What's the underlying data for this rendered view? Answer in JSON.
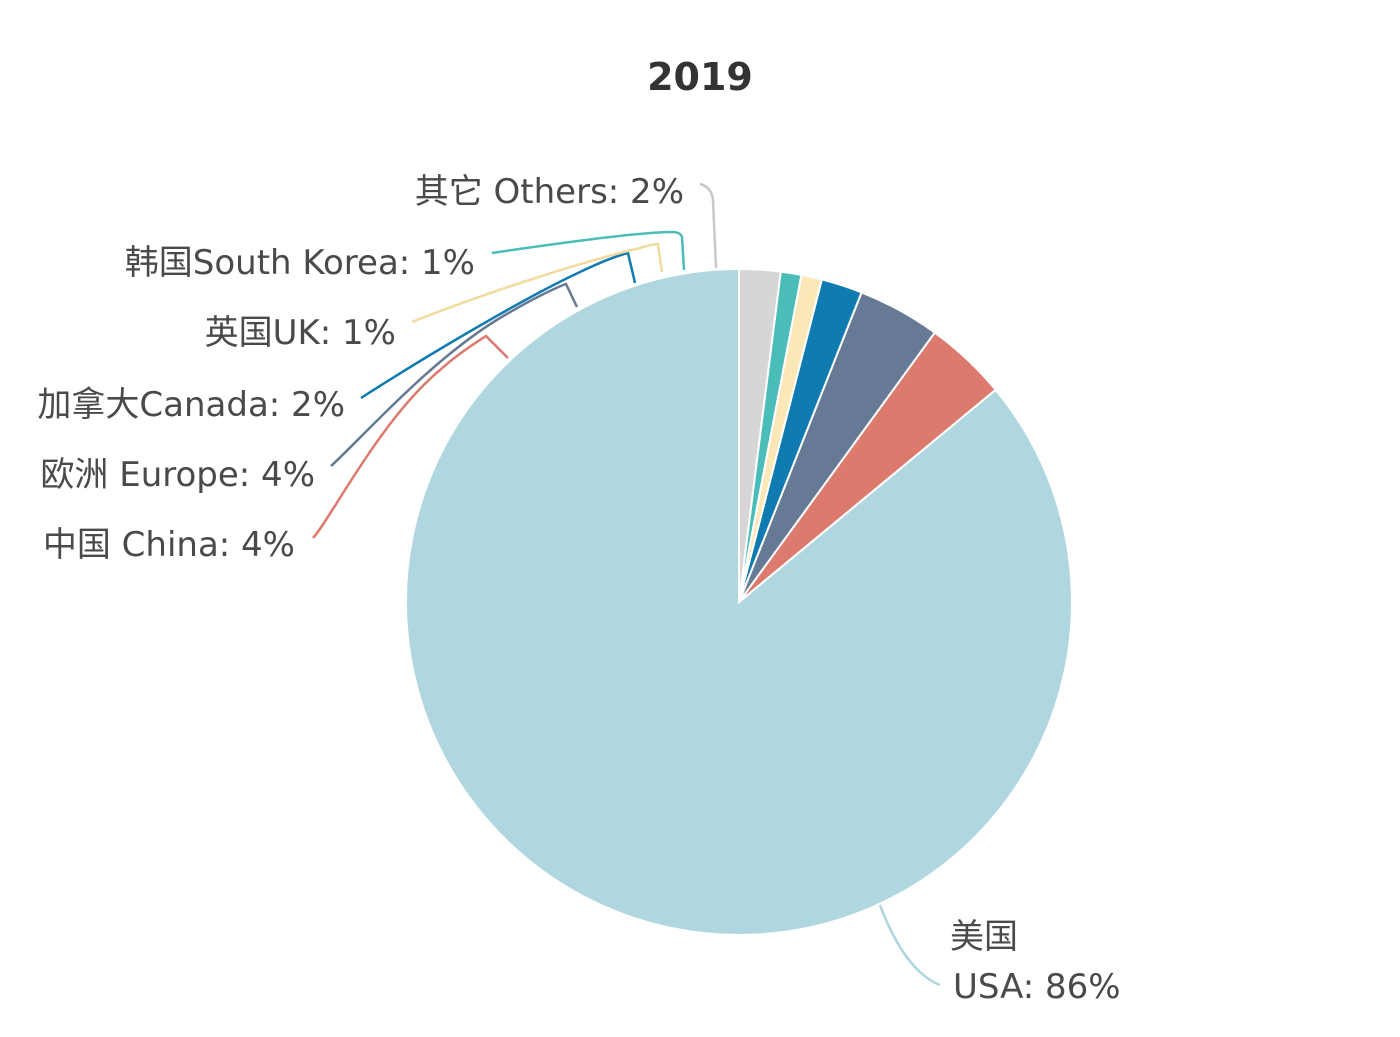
{
  "chart_data": {
    "type": "pie",
    "title": "2019",
    "start_angle_deg": 90,
    "direction": "counterclockwise",
    "slices": [
      {
        "label": "美国",
        "label_line2": "USA: 86%",
        "value": 86,
        "color": "#b0d7e0"
      },
      {
        "label": "中国 China: 4%",
        "value": 4,
        "color": "#dc7a6e"
      },
      {
        "label": "欧洲 Europe: 4%",
        "value": 4,
        "color": "#667a95"
      },
      {
        "label": "加拿大Canada: 2%",
        "value": 2,
        "color": "#0f7bb0"
      },
      {
        "label": "英国UK: 1%",
        "value": 1,
        "color": "#fbe8b6"
      },
      {
        "label": "韩国South Korea: 1%",
        "value": 1,
        "color": "#4bbdb8"
      },
      {
        "label": "其它 Others: 2%",
        "value": 2,
        "color": "#d6d6d6"
      }
    ]
  }
}
